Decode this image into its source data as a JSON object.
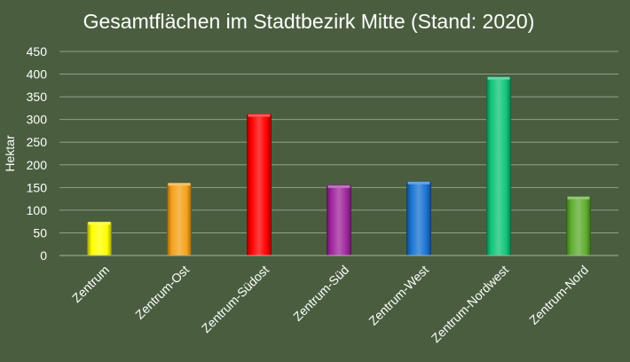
{
  "chart_data": {
    "type": "bar",
    "title": "Gesamtflächen im Stadtbezirk Mitte (Stand: 2020)",
    "xlabel": "",
    "ylabel": "Hektar",
    "ylim": [
      0,
      450
    ],
    "yticks": [
      0,
      50,
      100,
      150,
      200,
      250,
      300,
      350,
      400,
      450
    ],
    "grid": true,
    "legend": "none",
    "categories": [
      "Zentrum",
      "Zentrum-Ost",
      "Zentrum-Südost",
      "Zentrum-Süd",
      "Zentrum-West",
      "Zentrum-Nordwest",
      "Zentrum-Nord"
    ],
    "values": [
      74,
      160,
      312,
      155,
      163,
      394,
      130
    ],
    "colors": [
      "#ffff00",
      "#f4a11a",
      "#ff0000",
      "#a0279e",
      "#1a73d1",
      "#12c47a",
      "#5fac2f"
    ]
  }
}
